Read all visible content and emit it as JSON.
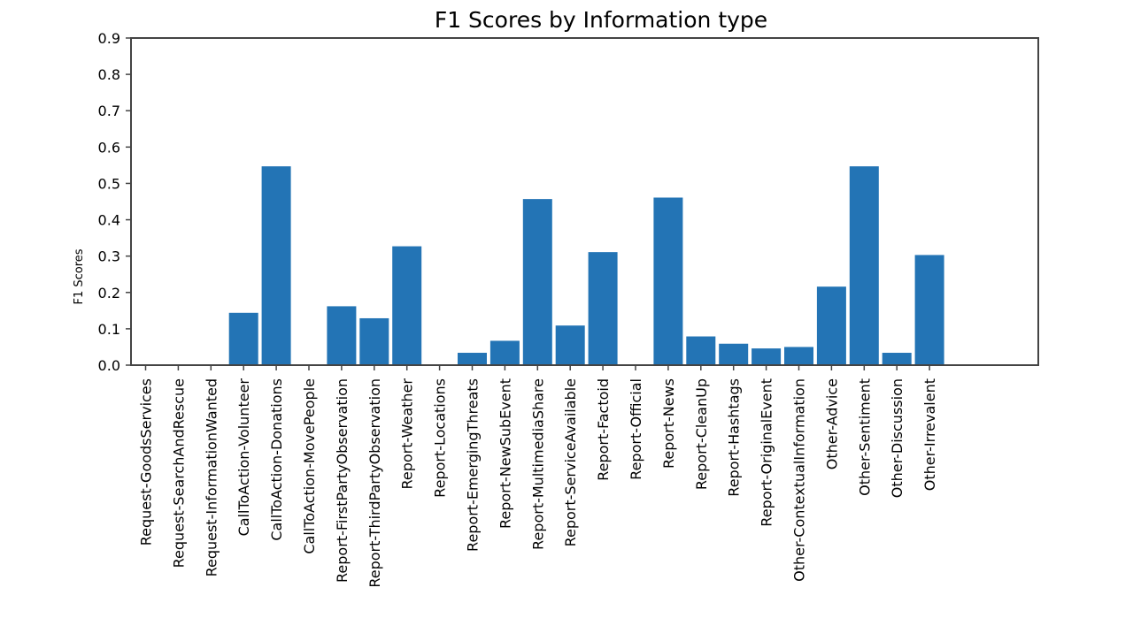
{
  "chart_data": {
    "type": "bar",
    "title": "F1 Scores by Information type",
    "xlabel": "",
    "ylabel": "F1 Scores",
    "ylim": [
      0,
      0.9
    ],
    "yticks": [
      "0.0",
      "0.1",
      "0.2",
      "0.3",
      "0.4",
      "0.5",
      "0.6",
      "0.7",
      "0.8",
      "0.9"
    ],
    "grid": false,
    "bar_color": "#2374b5",
    "categories": [
      "Request-GoodsServices",
      "Request-SearchAndRescue",
      "Request-InformationWanted",
      "CallToAction-Volunteer",
      "CallToAction-Donations",
      "CallToAction-MovePeople",
      "Report-FirstPartyObservation",
      "Report-ThirdPartyObservation",
      "Report-Weather",
      "Report-Locations",
      "Report-EmergingThreats",
      "Report-NewSubEvent",
      "Report-MultimediaShare",
      "Report-ServiceAvailable",
      "Report-Factoid",
      "Report-Official",
      "Report-News",
      "Report-CleanUp",
      "Report-Hashtags",
      "Report-OriginalEvent",
      "Other-ContextualInformation",
      "Other-Advice",
      "Other-Sentiment",
      "Other-Discussion",
      "Other-Irrevalent"
    ],
    "values": [
      0,
      0,
      0,
      0.144,
      0.547,
      0,
      0.162,
      0.129,
      0.327,
      0,
      0.034,
      0.067,
      0.457,
      0.109,
      0.311,
      0,
      0.461,
      0.079,
      0.059,
      0.046,
      0.05,
      0.216,
      0.547,
      0.034,
      0.303
    ]
  }
}
